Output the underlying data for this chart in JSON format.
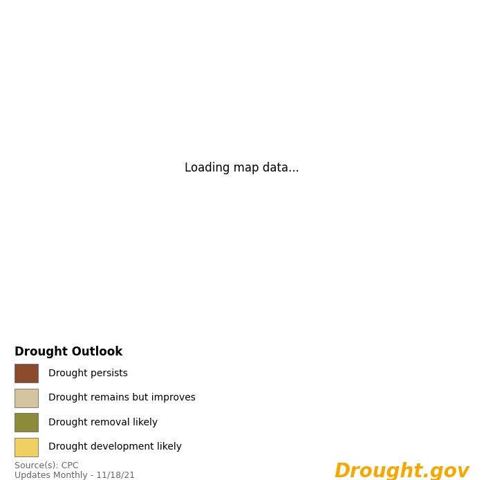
{
  "background_color": "#ffffff",
  "legend_title": "Drought Outlook",
  "legend_items": [
    {
      "label": "Drought persists",
      "color": "#8B4A2C"
    },
    {
      "label": "Drought remains but improves",
      "color": "#D4C5A0"
    },
    {
      "label": "Drought removal likely",
      "color": "#8B8B3A"
    },
    {
      "label": "Drought development likely",
      "color": "#F0D060"
    }
  ],
  "source_text": "Source(s): CPC",
  "update_text": "Updates Monthly - 11/18/21",
  "drought_gov_text": "Drought.gov",
  "drought_gov_color": "#F5A800",
  "colors": {
    "drought_persists": "#8B4A2C",
    "drought_improves": "#D4C5A0",
    "drought_removal": "#8B8B3A",
    "drought_development": "#F0D060",
    "no_drought": "#FFFFFF",
    "state_border": "#222222",
    "county_border": "#aaaaaa",
    "water": "#ffffff"
  },
  "map_xlim": [
    -125,
    -66.5
  ],
  "map_ylim": [
    24.0,
    50.0
  ]
}
